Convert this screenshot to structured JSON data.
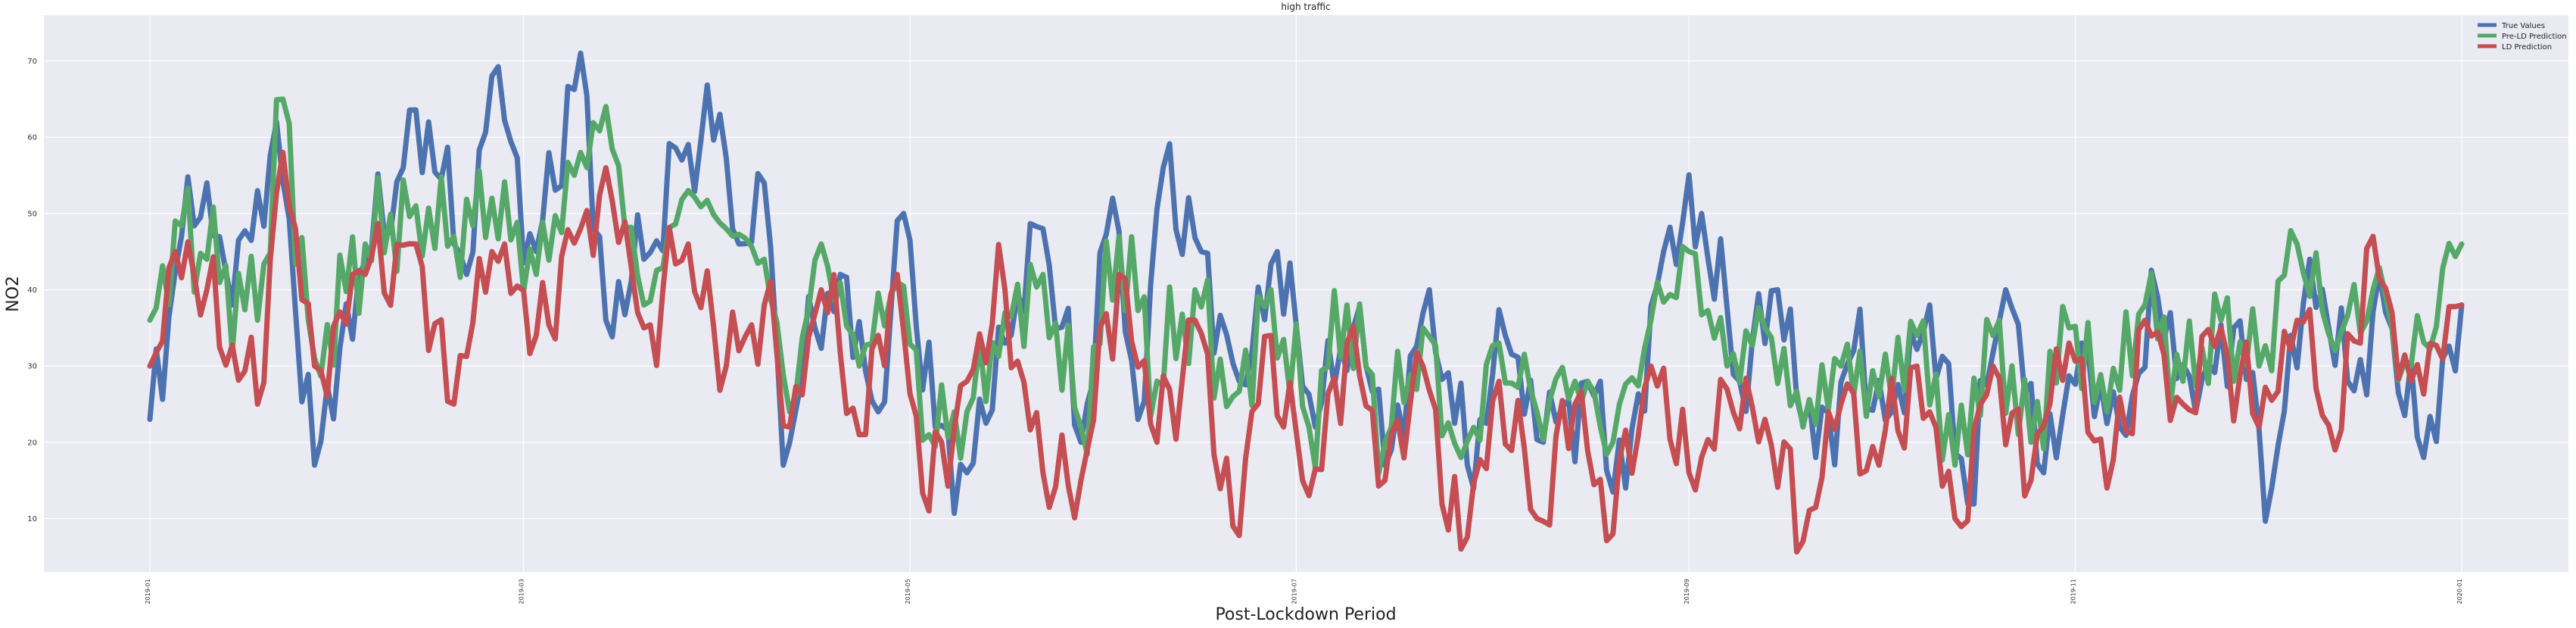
{
  "chart_data": {
    "type": "line",
    "title": "high traffic",
    "xlabel": "Post-Lockdown Period",
    "ylabel": "NO2",
    "x_start": "2019-01-01",
    "x_end": "2020-01-01",
    "ylim": [
      3,
      76
    ],
    "yticks": [
      10,
      20,
      30,
      40,
      50,
      60,
      70
    ],
    "xticks": [
      "2019-01",
      "2019-03",
      "2019-05",
      "2019-07",
      "2019-09",
      "2019-11",
      "2020-01"
    ],
    "grid": true,
    "legend_position": "top-right",
    "colors": {
      "background": "#eaeaf2",
      "grid": "#ffffff"
    },
    "series": [
      {
        "name": "True Values",
        "color": "#4c72b0",
        "anchors": [
          [
            "2019-01-01",
            23
          ],
          [
            "2019-01-06",
            47
          ],
          [
            "2019-01-10",
            54
          ],
          [
            "2019-01-14",
            38
          ],
          [
            "2019-01-21",
            62
          ],
          [
            "2019-01-27",
            17
          ],
          [
            "2019-02-03",
            42
          ],
          [
            "2019-02-10",
            56
          ],
          [
            "2019-02-14",
            62
          ],
          [
            "2019-02-20",
            42
          ],
          [
            "2019-02-24",
            68
          ],
          [
            "2019-03-03",
            45
          ],
          [
            "2019-03-10",
            71
          ],
          [
            "2019-03-14",
            36
          ],
          [
            "2019-03-20",
            44
          ],
          [
            "2019-03-26",
            57
          ],
          [
            "2019-04-01",
            63
          ],
          [
            "2019-04-04",
            46
          ],
          [
            "2019-04-08",
            54
          ],
          [
            "2019-04-11",
            17
          ],
          [
            "2019-04-16",
            35
          ],
          [
            "2019-04-20",
            42
          ],
          [
            "2019-04-26",
            24
          ],
          [
            "2019-04-30",
            50
          ],
          [
            "2019-05-05",
            22
          ],
          [
            "2019-05-10",
            16
          ],
          [
            "2019-05-16",
            33
          ],
          [
            "2019-05-22",
            48
          ],
          [
            "2019-05-28",
            20
          ],
          [
            "2019-06-02",
            52
          ],
          [
            "2019-06-06",
            23
          ],
          [
            "2019-06-10",
            56
          ],
          [
            "2019-06-16",
            45
          ],
          [
            "2019-06-22",
            28
          ],
          [
            "2019-06-28",
            45
          ],
          [
            "2019-07-04",
            22
          ],
          [
            "2019-07-10",
            35
          ],
          [
            "2019-07-16",
            19
          ],
          [
            "2019-07-22",
            40
          ],
          [
            "2019-07-28",
            17
          ],
          [
            "2019-08-03",
            34
          ],
          [
            "2019-08-09",
            20
          ],
          [
            "2019-08-16",
            28
          ],
          [
            "2019-08-22",
            14
          ],
          [
            "2019-08-28",
            45
          ],
          [
            "2019-09-03",
            50
          ],
          [
            "2019-09-09",
            28
          ],
          [
            "2019-09-15",
            40
          ],
          [
            "2019-09-21",
            18
          ],
          [
            "2019-09-27",
            32
          ],
          [
            "2019-10-03",
            24
          ],
          [
            "2019-10-09",
            38
          ],
          [
            "2019-10-15",
            12
          ],
          [
            "2019-10-21",
            40
          ],
          [
            "2019-10-27",
            16
          ],
          [
            "2019-11-02",
            33
          ],
          [
            "2019-11-08",
            22
          ],
          [
            "2019-11-14",
            39
          ],
          [
            "2019-11-20",
            24
          ],
          [
            "2019-11-26",
            35
          ],
          [
            "2019-12-02",
            14
          ],
          [
            "2019-12-08",
            44
          ],
          [
            "2019-12-14",
            28
          ],
          [
            "2019-12-20",
            37
          ],
          [
            "2019-12-26",
            18
          ],
          [
            "2020-01-01",
            38
          ]
        ]
      },
      {
        "name": "Pre-LD Prediction",
        "color": "#55a868",
        "anchors": [
          [
            "2019-01-01",
            36
          ],
          [
            "2019-01-05",
            49
          ],
          [
            "2019-01-10",
            44
          ],
          [
            "2019-01-18",
            36
          ],
          [
            "2019-01-22",
            65
          ],
          [
            "2019-01-27",
            31
          ],
          [
            "2019-02-04",
            46
          ],
          [
            "2019-02-12",
            51
          ],
          [
            "2019-02-18",
            47
          ],
          [
            "2019-02-24",
            52
          ],
          [
            "2019-03-03",
            42
          ],
          [
            "2019-03-10",
            58
          ],
          [
            "2019-03-14",
            64
          ],
          [
            "2019-03-20",
            38
          ],
          [
            "2019-03-27",
            53
          ],
          [
            "2019-04-02",
            48
          ],
          [
            "2019-04-08",
            44
          ],
          [
            "2019-04-12",
            24
          ],
          [
            "2019-04-17",
            46
          ],
          [
            "2019-04-23",
            30
          ],
          [
            "2019-04-29",
            41
          ],
          [
            "2019-05-04",
            21
          ],
          [
            "2019-05-10",
            24
          ],
          [
            "2019-05-16",
            37
          ],
          [
            "2019-05-22",
            42
          ],
          [
            "2019-05-28",
            22
          ],
          [
            "2019-06-03",
            47
          ],
          [
            "2019-06-09",
            28
          ],
          [
            "2019-06-15",
            40
          ],
          [
            "2019-06-21",
            26
          ],
          [
            "2019-06-27",
            40
          ],
          [
            "2019-07-03",
            22
          ],
          [
            "2019-07-09",
            38
          ],
          [
            "2019-07-15",
            20
          ],
          [
            "2019-07-21",
            35
          ],
          [
            "2019-07-27",
            18
          ],
          [
            "2019-08-02",
            33
          ],
          [
            "2019-08-08",
            24
          ],
          [
            "2019-08-14",
            28
          ],
          [
            "2019-08-20",
            20
          ],
          [
            "2019-08-26",
            36
          ],
          [
            "2019-09-01",
            45
          ],
          [
            "2019-09-07",
            30
          ],
          [
            "2019-09-13",
            35
          ],
          [
            "2019-09-19",
            22
          ],
          [
            "2019-09-25",
            30
          ],
          [
            "2019-10-01",
            26
          ],
          [
            "2019-10-07",
            34
          ],
          [
            "2019-10-13",
            17
          ],
          [
            "2019-10-19",
            34
          ],
          [
            "2019-10-25",
            20
          ],
          [
            "2019-10-31",
            35
          ],
          [
            "2019-11-06",
            24
          ],
          [
            "2019-11-12",
            38
          ],
          [
            "2019-11-18",
            28
          ],
          [
            "2019-11-24",
            36
          ],
          [
            "2019-11-30",
            30
          ],
          [
            "2019-12-06",
            46
          ],
          [
            "2019-12-12",
            32
          ],
          [
            "2019-12-18",
            40
          ],
          [
            "2019-12-24",
            30
          ],
          [
            "2020-01-01",
            46
          ]
        ]
      },
      {
        "name": "LD Prediction",
        "color": "#c44e52",
        "anchors": [
          [
            "2019-01-01",
            30
          ],
          [
            "2019-01-05",
            45
          ],
          [
            "2019-01-10",
            40
          ],
          [
            "2019-01-18",
            25
          ],
          [
            "2019-01-22",
            58
          ],
          [
            "2019-01-27",
            30
          ],
          [
            "2019-02-04",
            42
          ],
          [
            "2019-02-12",
            46
          ],
          [
            "2019-02-18",
            25
          ],
          [
            "2019-02-24",
            45
          ],
          [
            "2019-03-03",
            34
          ],
          [
            "2019-03-10",
            48
          ],
          [
            "2019-03-14",
            56
          ],
          [
            "2019-03-20",
            35
          ],
          [
            "2019-03-27",
            46
          ],
          [
            "2019-04-02",
            30
          ],
          [
            "2019-04-08",
            38
          ],
          [
            "2019-04-12",
            22
          ],
          [
            "2019-04-17",
            40
          ],
          [
            "2019-04-23",
            21
          ],
          [
            "2019-04-29",
            42
          ],
          [
            "2019-05-04",
            11
          ],
          [
            "2019-05-10",
            28
          ],
          [
            "2019-05-16",
            40
          ],
          [
            "2019-05-22",
            16
          ],
          [
            "2019-05-28",
            15
          ],
          [
            "2019-06-03",
            42
          ],
          [
            "2019-06-09",
            20
          ],
          [
            "2019-06-15",
            36
          ],
          [
            "2019-06-21",
            9
          ],
          [
            "2019-06-27",
            34
          ],
          [
            "2019-07-03",
            13
          ],
          [
            "2019-07-09",
            33
          ],
          [
            "2019-07-15",
            15
          ],
          [
            "2019-07-21",
            30
          ],
          [
            "2019-07-27",
            6
          ],
          [
            "2019-08-02",
            28
          ],
          [
            "2019-08-08",
            10
          ],
          [
            "2019-08-14",
            25
          ],
          [
            "2019-08-20",
            8
          ],
          [
            "2019-08-26",
            30
          ],
          [
            "2019-09-01",
            16
          ],
          [
            "2019-09-07",
            27
          ],
          [
            "2019-09-13",
            23
          ],
          [
            "2019-09-19",
            7
          ],
          [
            "2019-09-25",
            25
          ],
          [
            "2019-10-01",
            17
          ],
          [
            "2019-10-07",
            30
          ],
          [
            "2019-10-13",
            10
          ],
          [
            "2019-10-19",
            30
          ],
          [
            "2019-10-25",
            15
          ],
          [
            "2019-10-31",
            33
          ],
          [
            "2019-11-06",
            14
          ],
          [
            "2019-11-12",
            36
          ],
          [
            "2019-11-18",
            25
          ],
          [
            "2019-11-24",
            35
          ],
          [
            "2019-11-30",
            22
          ],
          [
            "2019-12-06",
            36
          ],
          [
            "2019-12-12",
            19
          ],
          [
            "2019-12-18",
            47
          ],
          [
            "2019-12-24",
            28
          ],
          [
            "2020-01-01",
            38
          ]
        ]
      }
    ]
  }
}
